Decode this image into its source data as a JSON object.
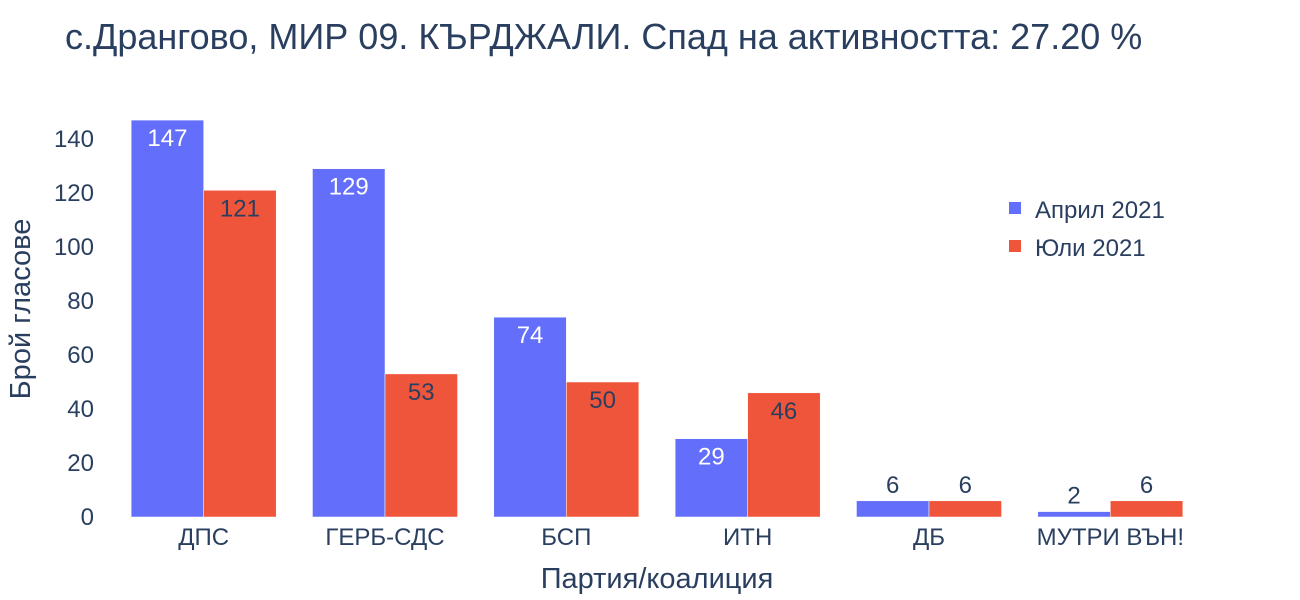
{
  "chart_data": {
    "type": "bar",
    "title": "с.Дрангово, МИР 09. КЪРДЖАЛИ. Спад на активността: 27.20 %",
    "xlabel": "Партия/коалиция",
    "ylabel": "Брой гласове",
    "categories": [
      "ДПС",
      "ГЕРБ-СДС",
      "БСП",
      "ИТН",
      "ДБ",
      "МУТРИ ВЪН!"
    ],
    "series": [
      {
        "name": "Април 2021",
        "values": [
          147,
          129,
          74,
          29,
          6,
          2
        ],
        "color": "#636efa"
      },
      {
        "name": "Юли 2021",
        "values": [
          121,
          53,
          50,
          46,
          6,
          6
        ],
        "color": "#ef553b"
      }
    ],
    "ylim": [
      0,
      155
    ],
    "yticks": [
      0,
      20,
      40,
      60,
      80,
      100,
      120,
      140
    ],
    "grid": false,
    "legend_position": "top-right"
  }
}
